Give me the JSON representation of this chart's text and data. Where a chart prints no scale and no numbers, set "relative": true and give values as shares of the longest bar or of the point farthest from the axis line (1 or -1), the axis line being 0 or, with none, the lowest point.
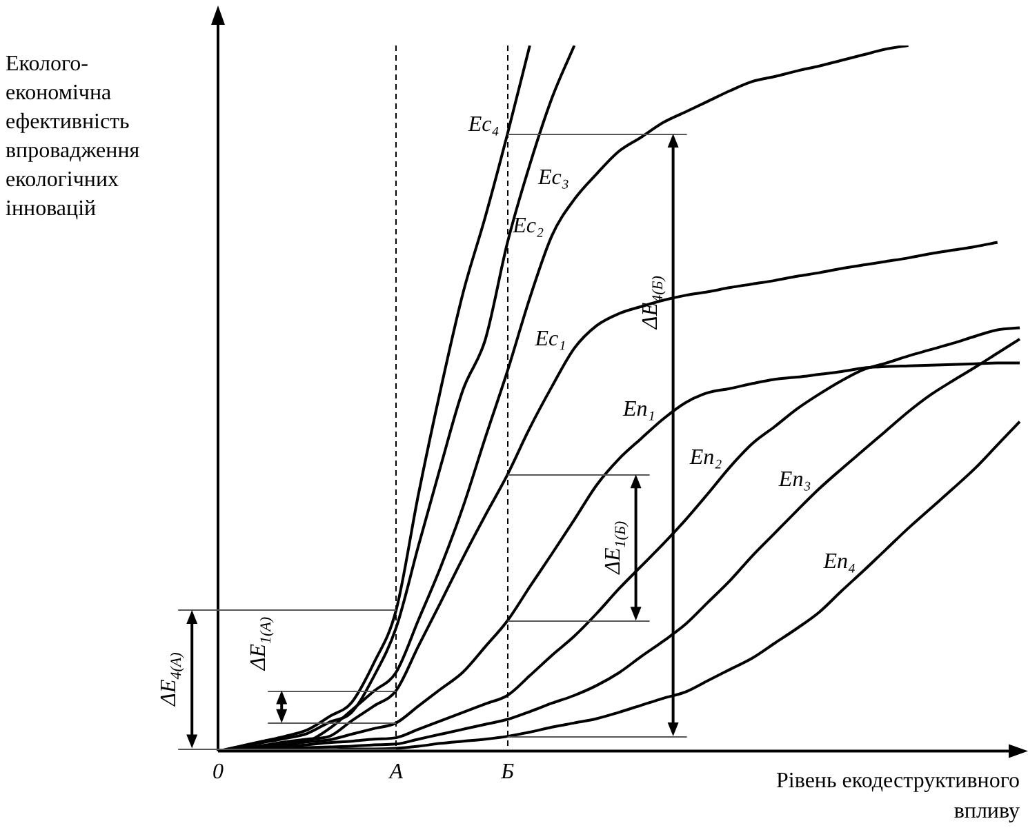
{
  "chart_data": {
    "type": "line",
    "relative": true,
    "ylabel": "Еколого-економічна ефективність впровадження екологічних інновацій",
    "xlabel": "Рівень екодеструктивного впливу",
    "grid": "x",
    "categories": [
      "0",
      null,
      null,
      null,
      null,
      null,
      null,
      null,
      "A",
      null,
      null,
      null,
      null,
      "Б",
      null,
      null,
      null,
      null,
      null,
      null,
      null,
      null,
      null,
      null,
      null,
      null,
      null,
      null,
      null,
      null,
      null,
      null,
      null,
      null,
      null,
      null,
      null
    ],
    "series": [
      {
        "name": "Ec₄",
        "color": "#000000",
        "values": [
          0,
          0.007,
          0.014,
          0.021,
          0.03,
          0.049,
          0.069,
          0.125,
          0.2,
          0.364,
          0.513,
          0.649,
          0.757,
          0.875,
          1,
          null,
          null,
          null,
          null,
          null,
          null,
          null,
          null,
          null,
          null,
          null,
          null,
          null,
          null,
          null,
          null,
          null,
          null,
          null,
          null,
          null,
          null
        ]
      },
      {
        "name": "Ec₃",
        "color": "#000000",
        "values": [
          0,
          0.006,
          0.012,
          0.018,
          0.025,
          0.041,
          0.055,
          0.106,
          0.175,
          0.291,
          0.404,
          0.512,
          0.583,
          0.721,
          0.831,
          0.926,
          1,
          null,
          null,
          null,
          null,
          null,
          null,
          null,
          null,
          null,
          null,
          null,
          null,
          null,
          null,
          null,
          null,
          null,
          null,
          null,
          null
        ]
      },
      {
        "name": "Ec₂",
        "color": "#000000",
        "values": [
          0,
          0.004,
          0.007,
          0.011,
          0.014,
          0.032,
          0.058,
          0.085,
          0.112,
          0.186,
          0.261,
          0.346,
          0.444,
          0.539,
          0.642,
          0.731,
          0.782,
          0.818,
          0.85,
          0.87,
          0.891,
          0.906,
          0.921,
          0.936,
          0.949,
          0.956,
          0.964,
          0.971,
          0.979,
          0.987,
          0.995,
          1,
          null,
          null,
          null,
          null,
          null
        ]
      },
      {
        "name": "Ec₁",
        "color": "#000000",
        "values": [
          0,
          0.004,
          0.008,
          0.013,
          0.017,
          0.021,
          0.043,
          0.064,
          0.086,
          0.149,
          0.211,
          0.274,
          0.334,
          0.392,
          0.458,
          0.517,
          0.571,
          0.603,
          0.62,
          0.63,
          0.639,
          0.646,
          0.651,
          0.657,
          0.662,
          0.667,
          0.673,
          0.678,
          0.684,
          0.689,
          0.694,
          0.699,
          0.705,
          0.71,
          0.715,
          0.721,
          null
        ]
      },
      {
        "name": "En₁",
        "color": "#000000",
        "values": [
          0,
          0.003,
          0.006,
          0.009,
          0.013,
          0.016,
          0.024,
          0.032,
          0.04,
          0.064,
          0.088,
          0.112,
          0.148,
          0.185,
          0.233,
          0.28,
          0.328,
          0.377,
          0.414,
          0.443,
          0.471,
          0.494,
          0.508,
          0.514,
          0.521,
          0.527,
          0.53,
          0.534,
          0.538,
          0.543,
          0.545,
          0.546,
          0.547,
          0.548,
          0.549,
          0.55,
          0.55
        ]
      },
      {
        "name": "En₂",
        "color": "#000000",
        "values": [
          0,
          0.002,
          0.005,
          0.007,
          0.009,
          0.012,
          0.014,
          0.017,
          0.019,
          0.031,
          0.043,
          0.055,
          0.067,
          0.079,
          0.107,
          0.136,
          0.163,
          0.195,
          0.23,
          0.262,
          0.294,
          0.328,
          0.365,
          0.403,
          0.436,
          0.46,
          0.485,
          0.506,
          0.525,
          0.541,
          0.55,
          0.56,
          0.569,
          0.578,
          0.588,
          0.597,
          0.6
        ]
      },
      {
        "name": "En₃",
        "color": "#000000",
        "values": [
          0,
          0.001,
          0.003,
          0.004,
          0.005,
          0.006,
          0.007,
          0.009,
          0.01,
          0.017,
          0.024,
          0.031,
          0.038,
          0.045,
          0.056,
          0.068,
          0.079,
          0.093,
          0.111,
          0.134,
          0.156,
          0.18,
          0.211,
          0.242,
          0.277,
          0.309,
          0.341,
          0.372,
          0.4,
          0.427,
          0.454,
          0.481,
          0.505,
          0.525,
          0.544,
          0.564,
          0.584
        ]
      },
      {
        "name": "En₄",
        "color": "#000000",
        "values": [
          0,
          0.001,
          0.001,
          0.002,
          0.002,
          0.002,
          0.003,
          0.003,
          0.004,
          0.007,
          0.011,
          0.014,
          0.017,
          0.021,
          0.027,
          0.034,
          0.04,
          0.046,
          0.055,
          0.065,
          0.075,
          0.084,
          0.1,
          0.116,
          0.132,
          0.153,
          0.174,
          0.197,
          0.227,
          0.256,
          0.286,
          0.316,
          0.344,
          0.372,
          0.401,
          0.434,
          0.467
        ]
      }
    ],
    "annotations": [
      "ΔE$_{4(A)}$",
      "ΔE$_{1(A)}$",
      "ΔE$_{1(Б)}$",
      "ΔE$_{4(Б)}$"
    ]
  }
}
